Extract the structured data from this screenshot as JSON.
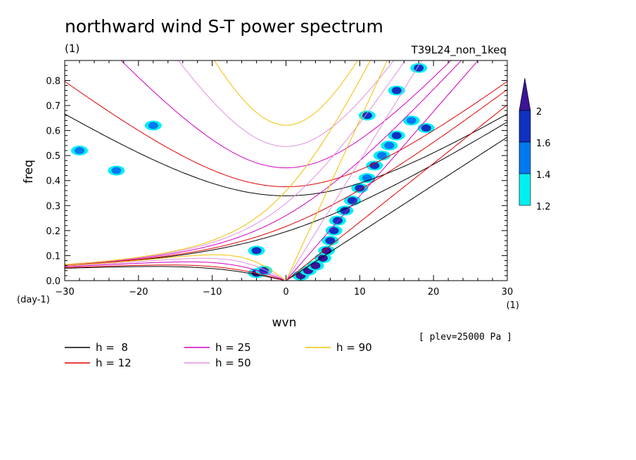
{
  "chart_data": {
    "type": "heatmap",
    "title": "northward wind S-T power spectrum",
    "subtitle_left": "(1)",
    "subtitle_right": "T39L24_non_1keq",
    "xlabel": "wvn",
    "ylabel": "freq",
    "x_unit": "(1)",
    "y_unit": "(day-1)",
    "xlim": [
      -30,
      30
    ],
    "ylim": [
      0,
      0.88
    ],
    "x_ticks": [
      -30,
      -20,
      -10,
      0,
      10,
      20,
      30
    ],
    "y_ticks": [
      0.0,
      0.1,
      0.2,
      0.3,
      0.4,
      0.5,
      0.6,
      0.7,
      0.8
    ],
    "note": "[ plev=25000 Pa ]",
    "colorbar": {
      "levels": [
        1.2,
        1.4,
        1.6,
        2
      ],
      "colors": [
        "#00f0f0",
        "#0078f0",
        "#1030c0",
        "#3c1496"
      ],
      "extend": "max"
    },
    "dispersion_curves": [
      {
        "name": "h =  8",
        "h": 8,
        "color": "#000000"
      },
      {
        "name": "h = 12",
        "h": 12,
        "color": "#e00000"
      },
      {
        "name": "h = 25",
        "h": 25,
        "color": "#d000c0"
      },
      {
        "name": "h = 50",
        "h": 50,
        "color": "#e090e0"
      },
      {
        "name": "h = 90",
        "h": 90,
        "color": "#f0c000"
      }
    ],
    "spectral_peaks": [
      {
        "k": 2,
        "f": 0.02,
        "level": 2
      },
      {
        "k": 3,
        "f": 0.04,
        "level": 2
      },
      {
        "k": 4,
        "f": 0.06,
        "level": 2
      },
      {
        "k": 5,
        "f": 0.09,
        "level": 2
      },
      {
        "k": 5.5,
        "f": 0.12,
        "level": 2
      },
      {
        "k": 6,
        "f": 0.16,
        "level": 1.6
      },
      {
        "k": 6.5,
        "f": 0.2,
        "level": 1.6
      },
      {
        "k": 7,
        "f": 0.24,
        "level": 1.6
      },
      {
        "k": 8,
        "f": 0.28,
        "level": 1.6
      },
      {
        "k": 9,
        "f": 0.32,
        "level": 1.6
      },
      {
        "k": 10,
        "f": 0.37,
        "level": 1.6
      },
      {
        "k": 11,
        "f": 0.41,
        "level": 1.4
      },
      {
        "k": 12,
        "f": 0.46,
        "level": 1.6
      },
      {
        "k": 13,
        "f": 0.5,
        "level": 1.4
      },
      {
        "k": 14,
        "f": 0.54,
        "level": 1.4
      },
      {
        "k": 15,
        "f": 0.58,
        "level": 1.6
      },
      {
        "k": 17,
        "f": 0.64,
        "level": 1.4
      },
      {
        "k": 19,
        "f": 0.61,
        "level": 1.6
      },
      {
        "k": 11,
        "f": 0.66,
        "level": 1.6
      },
      {
        "k": 15,
        "f": 0.76,
        "level": 1.6
      },
      {
        "k": 18,
        "f": 0.85,
        "level": 1.6
      },
      {
        "k": -4,
        "f": 0.03,
        "level": 2
      },
      {
        "k": -3,
        "f": 0.04,
        "level": 1.6
      },
      {
        "k": -4,
        "f": 0.12,
        "level": 1.6
      },
      {
        "k": -28,
        "f": 0.52,
        "level": 1.4
      },
      {
        "k": -23,
        "f": 0.44,
        "level": 1.4
      },
      {
        "k": -18,
        "f": 0.62,
        "level": 1.4
      }
    ]
  }
}
